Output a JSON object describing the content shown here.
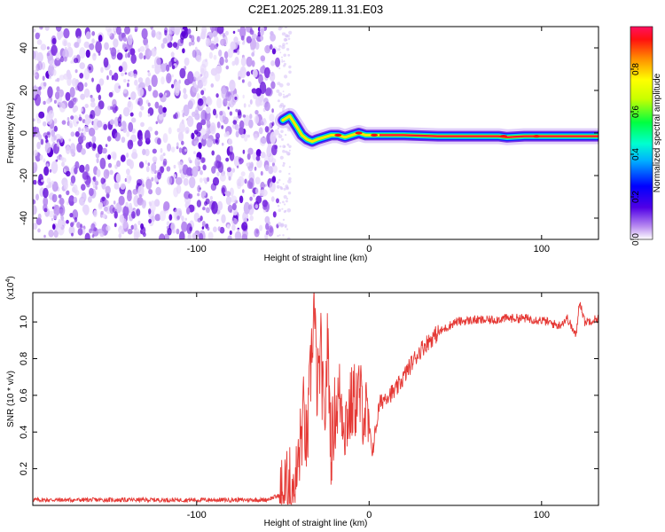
{
  "title": "C2E1.2025.289.11.31.E03",
  "chart_data": [
    {
      "type": "heatmap",
      "name": "spectrogram",
      "xlabel": "Height of straight line (km)",
      "ylabel": "Frequency (Hz)",
      "xlim": [
        -195,
        133
      ],
      "ylim": [
        -50,
        50
      ],
      "xticks": [
        -100,
        0,
        100
      ],
      "xtick_labels": [
        "-100",
        "0",
        "100"
      ],
      "yticks": [
        -40,
        -20,
        0,
        20,
        40
      ],
      "ytick_labels": [
        "-40",
        "-20",
        "0",
        "20",
        "40"
      ],
      "noise_region_x": [
        -195,
        -53
      ],
      "signal_track": [
        [
          -50,
          6
        ],
        [
          -46,
          8
        ],
        [
          -42,
          3
        ],
        [
          -39,
          -1
        ],
        [
          -36,
          -3
        ],
        [
          -33,
          -4
        ],
        [
          -30,
          -3
        ],
        [
          -26,
          -2
        ],
        [
          -22,
          -1
        ],
        [
          -18,
          -1
        ],
        [
          -14,
          -2
        ],
        [
          -10,
          -1
        ],
        [
          -6,
          0
        ],
        [
          -2,
          -1
        ],
        [
          2,
          -1
        ],
        [
          6,
          -1
        ],
        [
          20,
          -1
        ],
        [
          40,
          -1.5
        ],
        [
          60,
          -1.5
        ],
        [
          75,
          -1.5
        ],
        [
          80,
          -2
        ],
        [
          90,
          -1.5
        ],
        [
          100,
          -1.5
        ],
        [
          110,
          -1.5
        ],
        [
          120,
          -1.5
        ],
        [
          133,
          -1.5
        ]
      ],
      "colorbar": {
        "label": "Normalized spectral amplitude",
        "range": [
          0.0,
          1.0
        ],
        "ticks": [
          0.0,
          0.2,
          0.4,
          0.6,
          0.8
        ],
        "tick_labels": [
          "0.0",
          "0.2",
          "0.4",
          "0.6",
          "0.8"
        ]
      }
    },
    {
      "type": "line",
      "name": "snr",
      "xlabel": "Height of straight line (km)",
      "ylabel": "SNR (10 * v/v)",
      "y_multiplier": "(x10",
      "y_multiplier_exp": "4",
      "y_multiplier_close": ")",
      "xlim": [
        -195,
        133
      ],
      "ylim": [
        0.0,
        1.16
      ],
      "xticks": [
        -100,
        0,
        100
      ],
      "xtick_labels": [
        "-100",
        "0",
        "100"
      ],
      "yticks": [
        0.2,
        0.4,
        0.6,
        0.8,
        1.0
      ],
      "ytick_labels": [
        "0.2",
        "0.4",
        "0.6",
        "0.8",
        "1.0"
      ],
      "series": [
        {
          "name": "SNR",
          "color": "#e53935",
          "x": [
            -195,
            -150,
            -100,
            -60,
            -50,
            -42,
            -38,
            -36,
            -34,
            -32,
            -30,
            -28,
            -26,
            -24,
            -22,
            -20,
            -17,
            -14,
            -10,
            -6,
            -2,
            2,
            6,
            10,
            15,
            20,
            25,
            30,
            35,
            40,
            50,
            60,
            70,
            80,
            90,
            100,
            110,
            115,
            120,
            122,
            125,
            133
          ],
          "values": [
            0.03,
            0.03,
            0.03,
            0.03,
            0.06,
            0.15,
            0.5,
            0.3,
            0.7,
            1.1,
            0.6,
            0.85,
            0.4,
            0.9,
            0.3,
            0.5,
            0.6,
            0.45,
            0.55,
            0.6,
            0.5,
            0.3,
            0.55,
            0.6,
            0.62,
            0.7,
            0.78,
            0.85,
            0.9,
            0.94,
            1.0,
            1.01,
            1.01,
            1.02,
            1.02,
            1.01,
            0.98,
            1.02,
            0.92,
            1.12,
            1.0,
            1.02
          ]
        }
      ]
    }
  ]
}
